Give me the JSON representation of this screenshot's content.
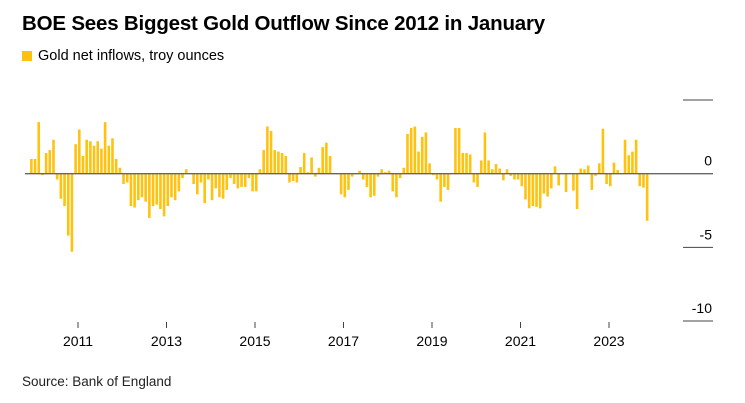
{
  "title": "BOE Sees Biggest Gold Outflow Since 2012 in January",
  "source": "Source: Bank of England",
  "chart_data": {
    "type": "bar",
    "title": "BOE Sees Biggest Gold Outflow Since 2012 in January",
    "legend": {
      "placement": "top-left",
      "entries": [
        "Gold net inflows, troy ounces"
      ]
    },
    "series": [
      {
        "name": "Gold net inflows, troy ounces",
        "color": "#FFC20E",
        "start_month": "2009-12",
        "frequency": "monthly",
        "values": [
          1.0,
          1.0,
          3.5,
          -0.1,
          1.4,
          1.6,
          2.3,
          -0.4,
          -1.7,
          -2.2,
          -4.2,
          -5.3,
          2.0,
          3.0,
          1.2,
          2.3,
          2.2,
          1.9,
          2.2,
          1.7,
          3.5,
          1.9,
          2.4,
          1.0,
          0.4,
          -0.7,
          -0.6,
          -2.2,
          -2.3,
          -1.8,
          -1.6,
          -1.9,
          -3.0,
          -2.2,
          -2.1,
          -2.4,
          -2.9,
          -2.2,
          -1.6,
          -1.8,
          -1.2,
          -0.3,
          0.3,
          0.0,
          -0.7,
          -1.4,
          -0.6,
          -2.0,
          -0.4,
          -1.8,
          -1.0,
          -1.6,
          -1.7,
          -1.1,
          -0.3,
          -0.7,
          -1.0,
          -0.9,
          -0.9,
          -0.3,
          -1.2,
          -1.2,
          0.3,
          1.6,
          3.2,
          2.9,
          1.6,
          1.5,
          1.4,
          1.2,
          -0.6,
          -0.5,
          -0.6,
          0.45,
          1.4,
          0.1,
          1.1,
          -0.2,
          0.4,
          1.8,
          2.1,
          1.2,
          0.0,
          -0.05,
          -1.4,
          -1.6,
          -1.1,
          -0.2,
          0.0,
          0.2,
          -0.4,
          -0.9,
          -1.6,
          -1.5,
          -0.2,
          0.3,
          0.1,
          0.2,
          -1.2,
          -1.6,
          -0.3,
          0.4,
          2.7,
          3.1,
          3.2,
          1.5,
          2.5,
          2.8,
          0.7,
          -0.1,
          -0.4,
          -1.9,
          -0.9,
          -1.1,
          0.05,
          3.1,
          3.1,
          1.4,
          1.4,
          1.3,
          -0.6,
          -0.9,
          0.9,
          2.8,
          0.9,
          0.3,
          0.65,
          0.35,
          -0.45,
          0.3,
          -0.15,
          -0.4,
          -0.4,
          -0.85,
          -1.75,
          -2.35,
          -2.2,
          -2.25,
          -2.35,
          -1.35,
          -1.55,
          -1.0,
          0.5,
          -0.8,
          -0.05,
          -1.25,
          0.05,
          -1.15,
          -2.4,
          0.35,
          0.3,
          0.55,
          -1.1,
          -0.15,
          0.7,
          3.05,
          -0.7,
          -0.85,
          0.75,
          0.25,
          -0.05,
          2.3,
          1.25,
          1.5,
          2.3,
          -0.85,
          -0.95,
          -3.2
        ]
      }
    ],
    "x_tick_labels": [
      "2011",
      "2013",
      "2015",
      "2017",
      "2019",
      "2021",
      "2023"
    ],
    "y_tick_labels": [
      "0",
      "-5",
      "-10"
    ],
    "ylim": [
      -10,
      5
    ],
    "y_ticks": [
      5,
      0,
      -5,
      -10
    ],
    "grid": false,
    "xlabel": "",
    "ylabel": ""
  }
}
